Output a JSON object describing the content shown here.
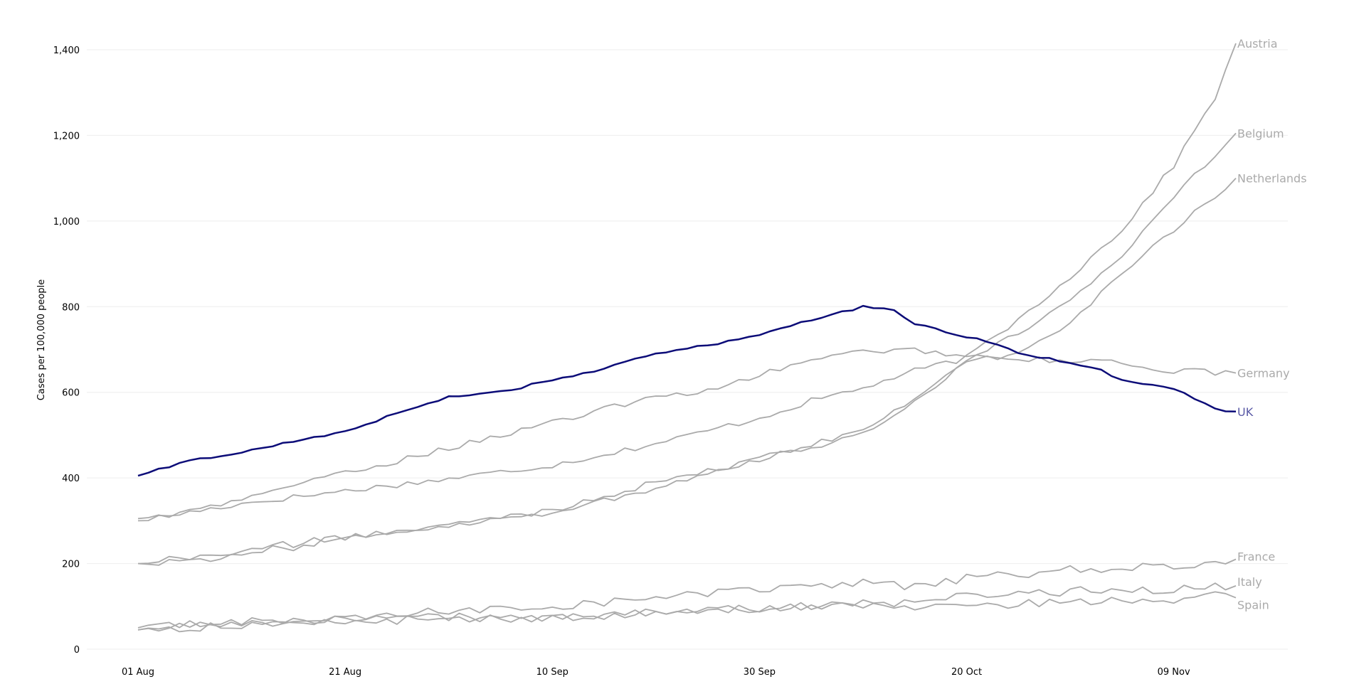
{
  "chart_data": {
    "type": "line",
    "title": "",
    "xlabel": "",
    "ylabel": "Cases per 100,000 people",
    "ylim": [
      0,
      1450
    ],
    "grid": true,
    "x_start": "01 Aug",
    "n_days": 107,
    "x_ticks": [
      {
        "label": "01 Aug",
        "day": 0
      },
      {
        "label": "21 Aug",
        "day": 20
      },
      {
        "label": "10 Sep",
        "day": 40
      },
      {
        "label": "30 Sep",
        "day": 60
      },
      {
        "label": "20 Oct",
        "day": 80
      },
      {
        "label": "09 Nov",
        "day": 100
      }
    ],
    "y_ticks": [
      {
        "label": "0",
        "value": 0
      },
      {
        "label": "200",
        "value": 200
      },
      {
        "label": "400",
        "value": 400
      },
      {
        "label": "600",
        "value": 600
      },
      {
        "label": "800",
        "value": 800
      },
      {
        "label": "1,000",
        "value": 1000
      },
      {
        "label": "1,200",
        "value": 1200
      },
      {
        "label": "1,400",
        "value": 1400
      }
    ],
    "highlight_color": "#0c0c78",
    "other_color": "#aaaaaa",
    "series": [
      {
        "name": "Austria",
        "highlight": false,
        "anchors": [
          [
            0,
            300
          ],
          [
            10,
            340
          ],
          [
            20,
            370
          ],
          [
            30,
            398
          ],
          [
            40,
            430
          ],
          [
            50,
            480
          ],
          [
            60,
            540
          ],
          [
            65,
            580
          ],
          [
            70,
            610
          ],
          [
            75,
            650
          ],
          [
            80,
            680
          ],
          [
            85,
            770
          ],
          [
            90,
            870
          ],
          [
            95,
            980
          ],
          [
            100,
            1130
          ],
          [
            104,
            1290
          ],
          [
            106,
            1415
          ]
        ]
      },
      {
        "name": "Belgium",
        "highlight": false,
        "anchors": [
          [
            0,
            200
          ],
          [
            10,
            220
          ],
          [
            20,
            260
          ],
          [
            30,
            290
          ],
          [
            40,
            320
          ],
          [
            50,
            375
          ],
          [
            60,
            450
          ],
          [
            65,
            470
          ],
          [
            70,
            505
          ],
          [
            72,
            530
          ],
          [
            75,
            580
          ],
          [
            80,
            670
          ],
          [
            85,
            740
          ],
          [
            90,
            810
          ],
          [
            95,
            920
          ],
          [
            100,
            1060
          ],
          [
            106,
            1205
          ]
        ]
      },
      {
        "name": "Netherlands",
        "highlight": false,
        "anchors": [
          [
            0,
            200
          ],
          [
            10,
            230
          ],
          [
            20,
            260
          ],
          [
            30,
            290
          ],
          [
            40,
            325
          ],
          [
            50,
            390
          ],
          [
            60,
            440
          ],
          [
            65,
            480
          ],
          [
            70,
            510
          ],
          [
            75,
            590
          ],
          [
            80,
            670
          ],
          [
            85,
            690
          ],
          [
            90,
            760
          ],
          [
            95,
            880
          ],
          [
            100,
            980
          ],
          [
            106,
            1100
          ]
        ]
      },
      {
        "name": "Germany",
        "highlight": false,
        "anchors": [
          [
            0,
            305
          ],
          [
            5,
            320
          ],
          [
            10,
            350
          ],
          [
            15,
            385
          ],
          [
            20,
            410
          ],
          [
            25,
            440
          ],
          [
            30,
            470
          ],
          [
            35,
            500
          ],
          [
            40,
            530
          ],
          [
            45,
            560
          ],
          [
            50,
            590
          ],
          [
            55,
            605
          ],
          [
            60,
            640
          ],
          [
            65,
            675
          ],
          [
            70,
            695
          ],
          [
            75,
            700
          ],
          [
            80,
            685
          ],
          [
            85,
            680
          ],
          [
            90,
            670
          ],
          [
            95,
            670
          ],
          [
            100,
            650
          ],
          [
            106,
            645
          ]
        ]
      },
      {
        "name": "UK",
        "highlight": true,
        "anchors": [
          [
            0,
            405
          ],
          [
            5,
            440
          ],
          [
            10,
            460
          ],
          [
            15,
            485
          ],
          [
            20,
            510
          ],
          [
            25,
            550
          ],
          [
            30,
            590
          ],
          [
            35,
            600
          ],
          [
            40,
            630
          ],
          [
            45,
            655
          ],
          [
            50,
            690
          ],
          [
            55,
            710
          ],
          [
            60,
            735
          ],
          [
            65,
            770
          ],
          [
            70,
            800
          ],
          [
            73,
            790
          ],
          [
            75,
            760
          ],
          [
            78,
            740
          ],
          [
            82,
            720
          ],
          [
            85,
            690
          ],
          [
            90,
            670
          ],
          [
            93,
            650
          ],
          [
            95,
            630
          ],
          [
            100,
            610
          ],
          [
            103,
            575
          ],
          [
            105,
            555
          ],
          [
            106,
            555
          ]
        ]
      },
      {
        "name": "France",
        "highlight": false,
        "anchors": [
          [
            0,
            45
          ],
          [
            10,
            60
          ],
          [
            20,
            70
          ],
          [
            30,
            90
          ],
          [
            40,
            100
          ],
          [
            50,
            120
          ],
          [
            60,
            140
          ],
          [
            65,
            145
          ],
          [
            70,
            155
          ],
          [
            75,
            145
          ],
          [
            80,
            165
          ],
          [
            85,
            175
          ],
          [
            90,
            185
          ],
          [
            95,
            190
          ],
          [
            100,
            195
          ],
          [
            104,
            195
          ],
          [
            106,
            210
          ]
        ]
      },
      {
        "name": "Italy",
        "highlight": false,
        "anchors": [
          [
            0,
            45
          ],
          [
            10,
            55
          ],
          [
            20,
            65
          ],
          [
            30,
            70
          ],
          [
            40,
            75
          ],
          [
            50,
            85
          ],
          [
            60,
            95
          ],
          [
            65,
            100
          ],
          [
            70,
            105
          ],
          [
            75,
            110
          ],
          [
            80,
            125
          ],
          [
            85,
            130
          ],
          [
            90,
            135
          ],
          [
            95,
            140
          ],
          [
            100,
            140
          ],
          [
            104,
            145
          ],
          [
            106,
            148
          ]
        ]
      },
      {
        "name": "Spain",
        "highlight": false,
        "anchors": [
          [
            0,
            50
          ],
          [
            10,
            65
          ],
          [
            20,
            70
          ],
          [
            30,
            75
          ],
          [
            40,
            70
          ],
          [
            50,
            85
          ],
          [
            60,
            95
          ],
          [
            65,
            100
          ],
          [
            70,
            105
          ],
          [
            75,
            100
          ],
          [
            80,
            100
          ],
          [
            85,
            105
          ],
          [
            90,
            110
          ],
          [
            95,
            115
          ],
          [
            100,
            115
          ],
          [
            104,
            125
          ],
          [
            106,
            120
          ]
        ]
      }
    ]
  }
}
